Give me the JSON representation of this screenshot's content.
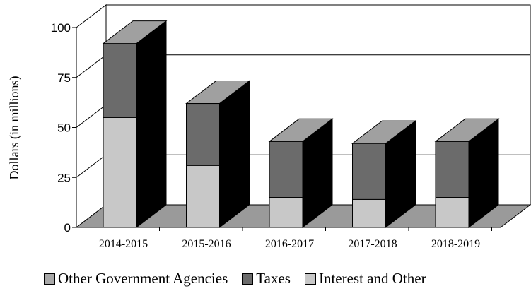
{
  "chart_data": {
    "type": "bar",
    "stacked": true,
    "three_d": true,
    "categories": [
      "2014-2015",
      "2015-2016",
      "2016-2017",
      "2017-2018",
      "2018-2019"
    ],
    "series": [
      {
        "name": "Interest and Other",
        "values": [
          55,
          31,
          15,
          14,
          15
        ],
        "color": "#c8c8c8"
      },
      {
        "name": "Taxes",
        "values": [
          37,
          31,
          28,
          28,
          28
        ],
        "color": "#6b6b6b"
      },
      {
        "name": "Other Government Agencies",
        "values": [
          0,
          0,
          0,
          0,
          0
        ],
        "color": "#a8a8a8"
      }
    ],
    "legend_order": [
      "Other Government Agencies",
      "Taxes",
      "Interest and Other"
    ],
    "ylabel": "Dollars (in millions)",
    "xlabel": "",
    "title": "",
    "ylim": [
      0,
      100
    ],
    "yticks": [
      0,
      25,
      50,
      75,
      100
    ],
    "grid": true,
    "legend_position": "bottom"
  }
}
